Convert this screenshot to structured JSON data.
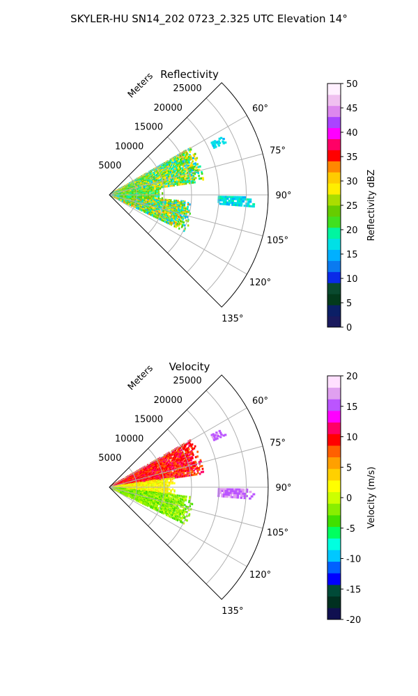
{
  "figure": {
    "title": "SKYLER-HU  SN14_202  0723_2.325 UTC Elevation 14°"
  },
  "chart_data": [
    {
      "type": "heatmap",
      "subtype": "polar-sector (radar PPI)",
      "title": "Reflectivity",
      "radial_axis_label": "Meters",
      "radial_ticks": [
        5000,
        10000,
        15000,
        20000,
        25000
      ],
      "radial_tick_labels": [
        "5000",
        "10000",
        "15000",
        "20000",
        "25000"
      ],
      "radial_max": 29000,
      "angular_range": [
        45,
        135
      ],
      "angular_ticks": [
        60,
        75,
        90,
        105,
        120,
        135
      ],
      "angular_tick_labels": [
        "60°",
        "75°",
        "90°",
        "105°",
        "120°",
        "135°"
      ],
      "grid": true,
      "colorbar": {
        "label": "Reflectivity dBZ",
        "range": [
          0,
          50
        ],
        "ticks": [
          0,
          5,
          10,
          15,
          20,
          25,
          30,
          35,
          40,
          45,
          50
        ],
        "tick_labels": [
          "0",
          "5",
          "10",
          "15",
          "20",
          "25",
          "30",
          "35",
          "40",
          "45",
          "50"
        ]
      },
      "echo_regions": [
        {
          "az_range": [
            60,
            82
          ],
          "range_m": [
            0,
            17500
          ],
          "value_range": [
            15,
            32
          ]
        },
        {
          "az_range": [
            95,
            116
          ],
          "range_m": [
            0,
            15500
          ],
          "value_range": [
            14,
            33
          ]
        },
        {
          "az_range": [
            82,
            95
          ],
          "range_m": [
            0,
            10000
          ],
          "value_range": [
            18,
            28
          ]
        },
        {
          "az_range": [
            63,
            66
          ],
          "range_m": [
            21000,
            23500
          ],
          "value_range": [
            15,
            18
          ]
        },
        {
          "az_range": [
            91,
            95
          ],
          "range_m": [
            20000,
            26500
          ],
          "value_range": [
            15,
            19
          ]
        }
      ]
    },
    {
      "type": "heatmap",
      "subtype": "polar-sector (radar PPI)",
      "title": "Velocity",
      "radial_axis_label": "Meters",
      "radial_ticks": [
        5000,
        10000,
        15000,
        20000,
        25000
      ],
      "radial_tick_labels": [
        "5000",
        "10000",
        "15000",
        "20000",
        "25000"
      ],
      "radial_max": 29000,
      "angular_range": [
        45,
        135
      ],
      "angular_ticks": [
        60,
        75,
        90,
        105,
        120,
        135
      ],
      "angular_tick_labels": [
        "60°",
        "75°",
        "90°",
        "105°",
        "120°",
        "135°"
      ],
      "grid": true,
      "colorbar": {
        "label": "Velocity (m/s)",
        "range": [
          -20,
          20
        ],
        "ticks": [
          -20,
          -15,
          -10,
          -5,
          0,
          5,
          10,
          15,
          20
        ],
        "tick_labels": [
          "-20",
          "-15",
          "-10",
          "-5",
          "0",
          "5",
          "10",
          "15",
          "20"
        ]
      },
      "echo_regions": [
        {
          "az_range": [
            60,
            82
          ],
          "range_m": [
            0,
            17500
          ],
          "value_range": [
            7,
            12
          ]
        },
        {
          "az_range": [
            82,
            97
          ],
          "range_m": [
            0,
            12000
          ],
          "value_range": [
            0,
            4
          ]
        },
        {
          "az_range": [
            97,
            116
          ],
          "range_m": [
            0,
            15500
          ],
          "value_range": [
            -4,
            0
          ]
        },
        {
          "az_range": [
            63,
            66
          ],
          "range_m": [
            21000,
            23500
          ],
          "value_range": [
            15,
            17
          ]
        },
        {
          "az_range": [
            91,
            95
          ],
          "range_m": [
            20000,
            26500
          ],
          "value_range": [
            15,
            17
          ]
        }
      ]
    }
  ],
  "colormaps": {
    "reflectivity": [
      "#1a1a5e",
      "#0b1f66",
      "#033a1c",
      "#0a4a2f",
      "#0a2ae8",
      "#0a7af0",
      "#00b0ff",
      "#00e0e6",
      "#00f5a0",
      "#40e020",
      "#66cc00",
      "#aadd00",
      "#ffee00",
      "#ffcc00",
      "#ff8800",
      "#ff0000",
      "#ff0066",
      "#ff00ff",
      "#aa44ff",
      "#dd88ee",
      "#f0c0f0",
      "#fff0ff"
    ],
    "velocity": [
      "#101050",
      "#003020",
      "#004a38",
      "#0000ff",
      "#0060ff",
      "#00c8ff",
      "#00ffe0",
      "#00ff60",
      "#40e000",
      "#88ee00",
      "#ccff00",
      "#ffff00",
      "#ffd000",
      "#ffa000",
      "#ff6000",
      "#ff0000",
      "#ff0066",
      "#ff00ff",
      "#bb55ff",
      "#e0a0f0",
      "#ffe0ff"
    ]
  }
}
